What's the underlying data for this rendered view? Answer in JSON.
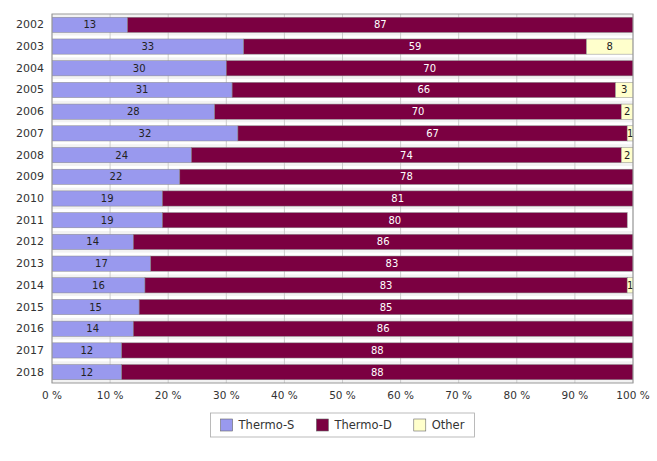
{
  "chart_data": {
    "type": "bar",
    "orientation": "horizontal",
    "stacked": true,
    "categories": [
      "2002",
      "2003",
      "2004",
      "2005",
      "2006",
      "2007",
      "2008",
      "2009",
      "2010",
      "2011",
      "2012",
      "2013",
      "2014",
      "2015",
      "2016",
      "2017",
      "2018"
    ],
    "series": [
      {
        "name": "Thermo-S",
        "color": "#9999ee",
        "values": [
          13,
          33,
          30,
          31,
          28,
          32,
          24,
          22,
          19,
          19,
          14,
          17,
          16,
          15,
          14,
          12,
          12
        ]
      },
      {
        "name": "Thermo-D",
        "color": "#7b0041",
        "values": [
          87,
          59,
          70,
          66,
          70,
          67,
          74,
          78,
          81,
          80,
          86,
          83,
          83,
          85,
          86,
          88,
          88
        ]
      },
      {
        "name": "Other",
        "color": "#ffffcc",
        "values": [
          0,
          8,
          0,
          3,
          2,
          1,
          2,
          0,
          0,
          0,
          0,
          0,
          1,
          0,
          0,
          0,
          0
        ]
      }
    ],
    "xlim": [
      0,
      100
    ],
    "xticks": [
      {
        "value": 0,
        "label": "0 %"
      },
      {
        "value": 10,
        "label": "10 %"
      },
      {
        "value": 20,
        "label": "20 %"
      },
      {
        "value": 30,
        "label": "30 %"
      },
      {
        "value": 40,
        "label": "40 %"
      },
      {
        "value": 50,
        "label": "50 %"
      },
      {
        "value": 60,
        "label": "60 %"
      },
      {
        "value": 70,
        "label": "70 %"
      },
      {
        "value": 80,
        "label": "80 %"
      },
      {
        "value": 90,
        "label": "90 %"
      },
      {
        "value": 100,
        "label": "100 %"
      }
    ],
    "grid": true,
    "legend": "bottom",
    "data_labels": true
  }
}
